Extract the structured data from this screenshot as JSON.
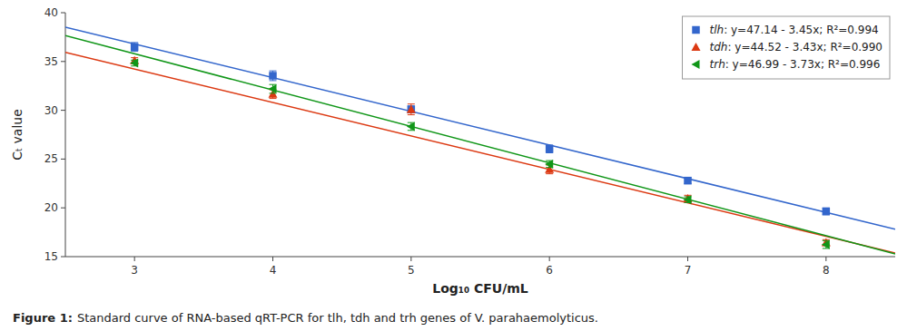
{
  "chart_data": {
    "type": "scatter",
    "x_label": "Log₁₀ CFU/mL",
    "y_label": "Cₜ value",
    "caption_label": "Figure 1:",
    "caption": "Standard curve of RNA-based qRT-PCR for tlh, tdh and trh genes of V. parahaemolyticus.",
    "x": [
      3,
      4,
      5,
      6,
      7,
      8
    ],
    "xlim": [
      2.5,
      8.5
    ],
    "ylim": [
      15,
      40
    ],
    "xticks": [
      3,
      4,
      5,
      6,
      7,
      8
    ],
    "yticks": [
      15,
      20,
      25,
      30,
      35,
      40
    ],
    "grid": false,
    "legend": "upper right",
    "series": [
      {
        "name": "tlh: y=47.14 - 3.45x; R²=0.994",
        "color": "#3366cc",
        "marker": "square",
        "values": [
          36.49,
          33.54,
          30.09,
          26.04,
          22.79,
          19.64
        ],
        "errors": [
          0.45,
          0.5,
          0.35,
          0.4,
          0.3,
          0.35
        ],
        "fit": {
          "x": [
            2.5,
            8.5
          ],
          "values": [
            38.515,
            17.815
          ]
        }
      },
      {
        "name": "tdh: y=44.52 - 3.43x; R²=0.990",
        "color": "#dc3912",
        "marker": "triangle-up",
        "values": [
          35.09,
          31.66,
          30.09,
          23.94,
          20.94,
          16.44
        ],
        "errors": [
          0.3,
          0.45,
          0.55,
          0.45,
          0.35,
          0.3
        ],
        "fit": {
          "x": [
            2.5,
            8.5
          ],
          "values": [
            35.945,
            15.365
          ]
        }
      },
      {
        "name": "trh: y=46.99 - 3.73x; R²=0.996",
        "color": "#109618",
        "marker": "triangle-left",
        "values": [
          34.84,
          32.19,
          28.34,
          24.49,
          20.84,
          16.24
        ],
        "errors": [
          0.3,
          0.45,
          0.4,
          0.35,
          0.3,
          0.4
        ],
        "fit": {
          "x": [
            2.5,
            8.5
          ],
          "values": [
            37.665,
            15.285
          ]
        }
      }
    ]
  }
}
